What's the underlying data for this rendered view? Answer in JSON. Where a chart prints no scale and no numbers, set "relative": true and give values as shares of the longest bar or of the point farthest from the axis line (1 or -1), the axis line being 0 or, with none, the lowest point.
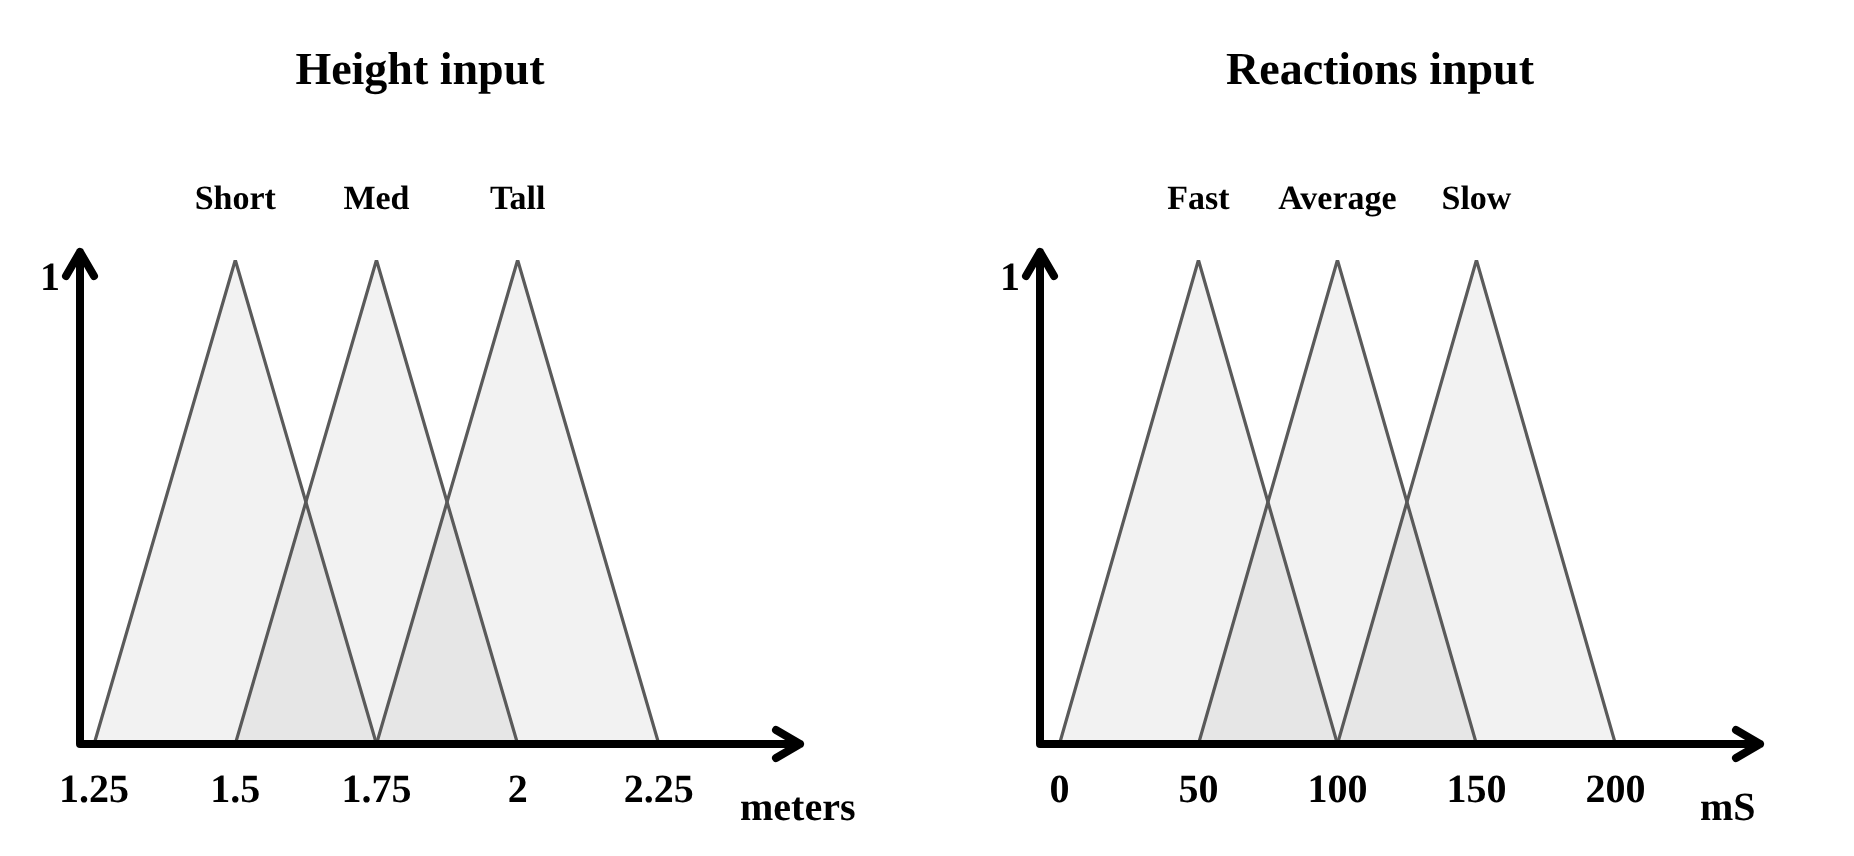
{
  "chart_data": [
    {
      "type": "area",
      "title": "Height input",
      "xlabel": "meters",
      "relative": true,
      "marker": "none",
      "annotations": [
        "1"
      ],
      "xlim": [
        1.225,
        2.5
      ],
      "xticks": [
        1.25,
        1.5,
        1.75,
        2,
        2.25
      ],
      "series": [
        {
          "name": "Short",
          "color": "#5a5a5a",
          "x": [
            1.25,
            1.5,
            1.75
          ],
          "values": [
            0,
            1,
            0
          ]
        },
        {
          "name": "Med",
          "color": "#5a5a5a",
          "x": [
            1.5,
            1.75,
            2
          ],
          "values": [
            0,
            1,
            0
          ]
        },
        {
          "name": "Tall",
          "color": "#5a5a5a",
          "x": [
            1.75,
            2,
            2.25
          ],
          "values": [
            0,
            1,
            0
          ]
        }
      ]
    },
    {
      "type": "area",
      "title": "Reactions input",
      "xlabel": "mS",
      "relative": true,
      "marker": "none",
      "annotations": [
        "1"
      ],
      "xlim": [
        -7,
        252
      ],
      "xticks": [
        0,
        50,
        100,
        150,
        200
      ],
      "series": [
        {
          "name": "Fast",
          "color": "#5a5a5a",
          "x": [
            0,
            50,
            100
          ],
          "values": [
            0,
            1,
            0
          ]
        },
        {
          "name": "Average",
          "color": "#5a5a5a",
          "x": [
            50,
            100,
            150
          ],
          "values": [
            0,
            1,
            0
          ]
        },
        {
          "name": "Slow",
          "color": "#5a5a5a",
          "x": [
            100,
            150,
            200
          ],
          "values": [
            0,
            1,
            0
          ]
        }
      ]
    }
  ]
}
